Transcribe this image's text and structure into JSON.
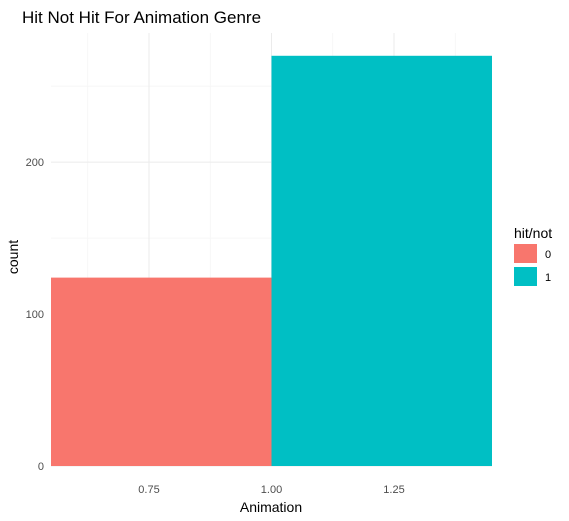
{
  "chart_data": {
    "type": "bar",
    "title": "Hit Not Hit For Animation Genre",
    "xlabel": "Animation",
    "ylabel": "count",
    "xlim": [
      0.55,
      1.45
    ],
    "ylim": [
      0,
      285
    ],
    "x_ticks": [
      0.75,
      1.0,
      1.25
    ],
    "x_tick_labels": [
      "0.75",
      "1.00",
      "1.25"
    ],
    "x_minor_ticks": [
      0.625,
      0.875,
      1.125,
      1.375
    ],
    "y_ticks": [
      0,
      100,
      200
    ],
    "y_tick_labels": [
      "0",
      "100",
      "200"
    ],
    "y_minor_ticks": [
      50,
      150,
      250
    ],
    "grid": true,
    "legend": {
      "title": "hit/not",
      "position": "right",
      "entries": [
        {
          "label": "0",
          "color": "#F8766D"
        },
        {
          "label": "1",
          "color": "#00BFC4"
        }
      ]
    },
    "series": [
      {
        "name": "0",
        "color": "#F8766D",
        "x_start": 0.55,
        "x_end": 1.0,
        "value": 124
      },
      {
        "name": "1",
        "color": "#00BFC4",
        "x_start": 1.0,
        "x_end": 1.45,
        "value": 270
      }
    ]
  }
}
